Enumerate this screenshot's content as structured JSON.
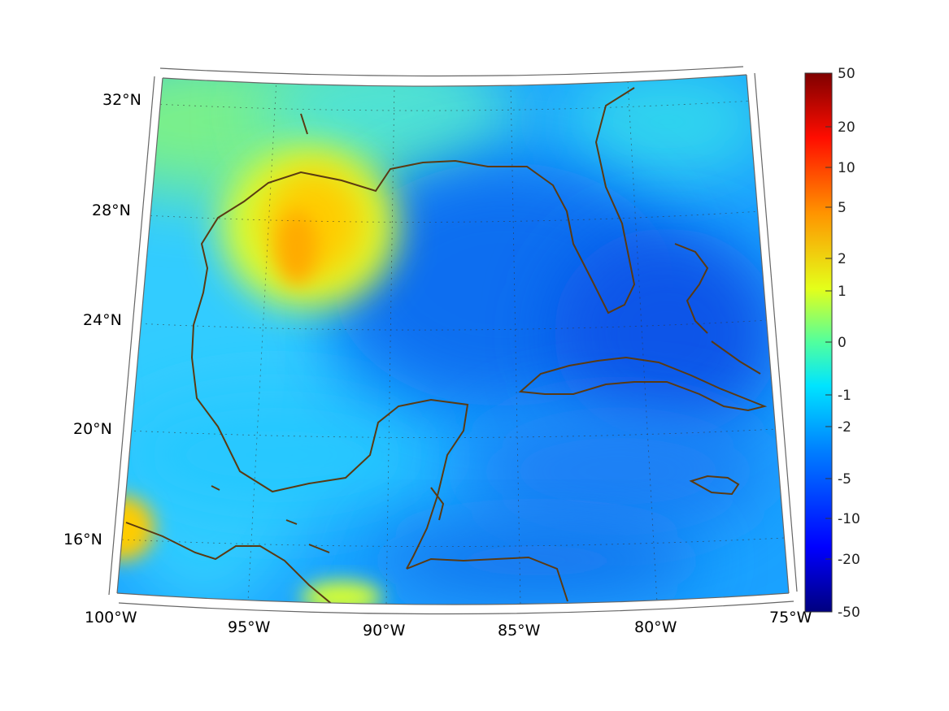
{
  "map": {
    "region": "Gulf of Mexico and Caribbean",
    "projection": "conic",
    "lat_labels": [
      "32°N",
      "28°N",
      "24°N",
      "20°N",
      "16°N"
    ],
    "lon_labels": [
      "100°W",
      "95°W",
      "90°W",
      "85°W",
      "80°W",
      "75°W"
    ],
    "lat_values": [
      32,
      28,
      24,
      20,
      16
    ],
    "lon_values": [
      -100,
      -95,
      -90,
      -85,
      -80,
      -75
    ],
    "coastline_color": "#5a3a12",
    "grid": true
  },
  "colorbar": {
    "colormap": "jet",
    "labels": [
      "50",
      "20",
      "10",
      "5",
      "2",
      "1",
      "0",
      "-1",
      "-2",
      "-5",
      "-10",
      "-20",
      "-50"
    ],
    "values": [
      50,
      20,
      10,
      5,
      2,
      1,
      0,
      -1,
      -2,
      -5,
      -10,
      -20,
      -50
    ]
  }
}
